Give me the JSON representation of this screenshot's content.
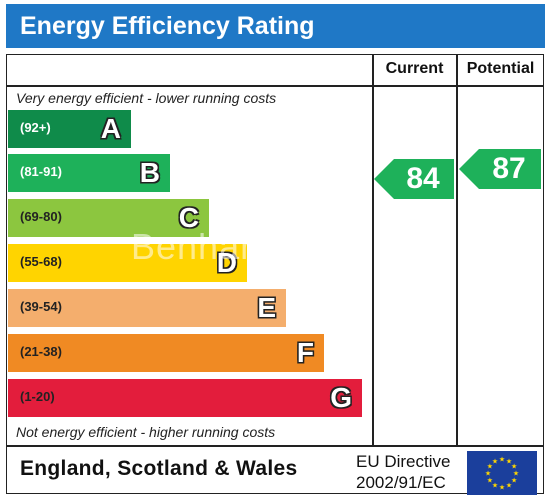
{
  "title": "Energy Efficiency Rating",
  "columns": {
    "current": "Current",
    "potential": "Potential"
  },
  "captions": {
    "top": "Very energy efficient - lower running costs",
    "bottom": "Not energy efficient - higher running costs"
  },
  "bands": [
    {
      "range": "(92+)",
      "letter": "A",
      "color": "#0f8b4a"
    },
    {
      "range": "(81-91)",
      "letter": "B",
      "color": "#1eb15a"
    },
    {
      "range": "(69-80)",
      "letter": "C",
      "color": "#8cc63f"
    },
    {
      "range": "(55-68)",
      "letter": "D",
      "color": "#ffd400"
    },
    {
      "range": "(39-54)",
      "letter": "E",
      "color": "#f4ae6d"
    },
    {
      "range": "(21-38)",
      "letter": "F",
      "color": "#f08a23"
    },
    {
      "range": "(1-20)",
      "letter": "G",
      "color": "#e31d3c"
    }
  ],
  "current_rating": {
    "value": "84",
    "band": "B",
    "color": "#1eb15a"
  },
  "potential_rating": {
    "value": "87",
    "band": "B",
    "color": "#1eb15a"
  },
  "footer": {
    "country": "England, Scotland & Wales",
    "directive_line1": "EU Directive",
    "directive_line2": "2002/91/EC"
  },
  "watermark": "Benham",
  "icons": {
    "flag": "eu-flag-icon"
  },
  "colors": {
    "title_bar": "#1f78c6"
  }
}
